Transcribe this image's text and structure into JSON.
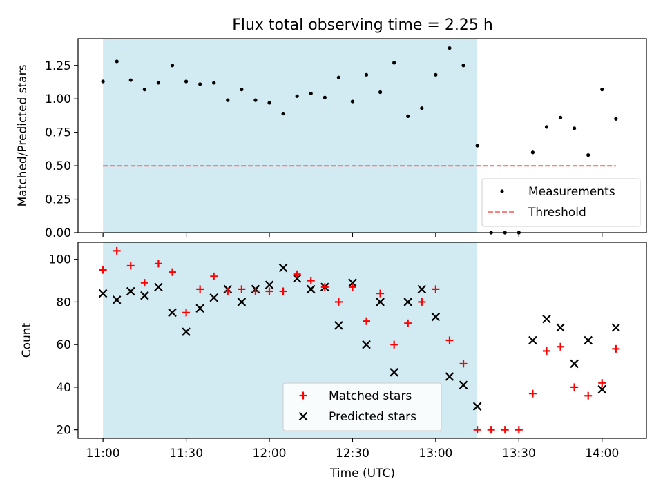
{
  "title": "Flux total observing time = 2.25 h",
  "colors": {
    "shade": "#add8e6",
    "measurement": "#000000",
    "threshold": "#ff7f7f",
    "matched": "#ff0000",
    "predicted": "#000000"
  },
  "chart_data": [
    {
      "type": "scatter",
      "panel": "top",
      "ylabel": "Matched/Predicted stars",
      "ylim": [
        0,
        1.45
      ],
      "yticks": [
        0.0,
        0.25,
        0.5,
        0.75,
        1.0,
        1.25
      ],
      "ytick_labels": [
        "0.00",
        "0.25",
        "0.50",
        "0.75",
        "1.00",
        "1.25"
      ],
      "xlim": [
        "10:51",
        "14:16"
      ],
      "shaded_span": [
        "11:00",
        "13:15"
      ],
      "grid": false,
      "legend": {
        "position": "bottom-right",
        "entries": [
          "Measurements",
          "Threshold"
        ]
      },
      "threshold": {
        "name": "Threshold",
        "y": 0.5,
        "x_range": [
          "11:00",
          "14:05"
        ],
        "style": "dashed"
      },
      "series": [
        {
          "name": "Measurements",
          "marker": "dot",
          "x": [
            "11:00",
            "11:05",
            "11:10",
            "11:15",
            "11:20",
            "11:25",
            "11:30",
            "11:35",
            "11:40",
            "11:45",
            "11:50",
            "11:55",
            "12:00",
            "12:05",
            "12:10",
            "12:15",
            "12:20",
            "12:25",
            "12:30",
            "12:35",
            "12:40",
            "12:45",
            "12:50",
            "12:55",
            "13:00",
            "13:05",
            "13:10",
            "13:15",
            "13:20",
            "13:25",
            "13:30",
            "13:35",
            "13:40",
            "13:45",
            "13:50",
            "13:55",
            "14:00",
            "14:05"
          ],
          "y": [
            1.13,
            1.28,
            1.14,
            1.07,
            1.12,
            1.25,
            1.13,
            1.11,
            1.12,
            0.99,
            1.07,
            0.99,
            0.97,
            0.89,
            1.02,
            1.04,
            1.01,
            1.16,
            0.98,
            1.18,
            1.05,
            1.27,
            0.87,
            0.93,
            1.18,
            1.38,
            1.25,
            0.65,
            0.0,
            0.0,
            0.0,
            0.6,
            0.79,
            0.86,
            0.78,
            0.58,
            1.07,
            0.85
          ]
        }
      ]
    },
    {
      "type": "scatter",
      "panel": "bottom",
      "xlabel": "Time (UTC)",
      "ylabel": "Count",
      "ylim": [
        16,
        108
      ],
      "yticks": [
        20,
        40,
        60,
        80,
        100
      ],
      "xlim": [
        "10:51",
        "14:16"
      ],
      "xticks": [
        "11:00",
        "11:30",
        "12:00",
        "12:30",
        "13:00",
        "13:30",
        "14:00"
      ],
      "shaded_span": [
        "11:00",
        "13:15"
      ],
      "grid": false,
      "legend": {
        "position": "bottom-center",
        "entries": [
          "Matched stars",
          "Predicted stars"
        ]
      },
      "series": [
        {
          "name": "Matched stars",
          "marker": "plus",
          "x": [
            "11:00",
            "11:05",
            "11:10",
            "11:15",
            "11:20",
            "11:25",
            "11:30",
            "11:35",
            "11:40",
            "11:45",
            "11:50",
            "11:55",
            "12:00",
            "12:05",
            "12:10",
            "12:15",
            "12:20",
            "12:25",
            "12:30",
            "12:35",
            "12:40",
            "12:45",
            "12:50",
            "12:55",
            "13:00",
            "13:05",
            "13:10",
            "13:15",
            "13:20",
            "13:25",
            "13:30",
            "13:35",
            "13:40",
            "13:45",
            "13:50",
            "13:55",
            "14:00",
            "14:05"
          ],
          "y": [
            95,
            104,
            97,
            89,
            98,
            94,
            75,
            86,
            92,
            85,
            86,
            85,
            85,
            85,
            93,
            90,
            87,
            80,
            87,
            71,
            84,
            60,
            70,
            80,
            86,
            62,
            51,
            20,
            20,
            20,
            20,
            37,
            57,
            59,
            40,
            36,
            42,
            58
          ]
        },
        {
          "name": "Predicted stars",
          "marker": "x",
          "x": [
            "11:00",
            "11:05",
            "11:10",
            "11:15",
            "11:20",
            "11:25",
            "11:30",
            "11:35",
            "11:40",
            "11:45",
            "11:50",
            "11:55",
            "12:00",
            "12:05",
            "12:10",
            "12:15",
            "12:20",
            "12:25",
            "12:30",
            "12:35",
            "12:40",
            "12:45",
            "12:50",
            "12:55",
            "13:00",
            "13:05",
            "13:10",
            "13:15",
            "13:35",
            "13:40",
            "13:45",
            "13:50",
            "13:55",
            "14:00",
            "14:05"
          ],
          "y": [
            84,
            81,
            85,
            83,
            87,
            75,
            66,
            77,
            82,
            86,
            80,
            86,
            88,
            96,
            91,
            86,
            87,
            69,
            89,
            60,
            80,
            47,
            80,
            86,
            73,
            45,
            41,
            31,
            62,
            72,
            68,
            51,
            62,
            39,
            68
          ]
        }
      ]
    }
  ]
}
